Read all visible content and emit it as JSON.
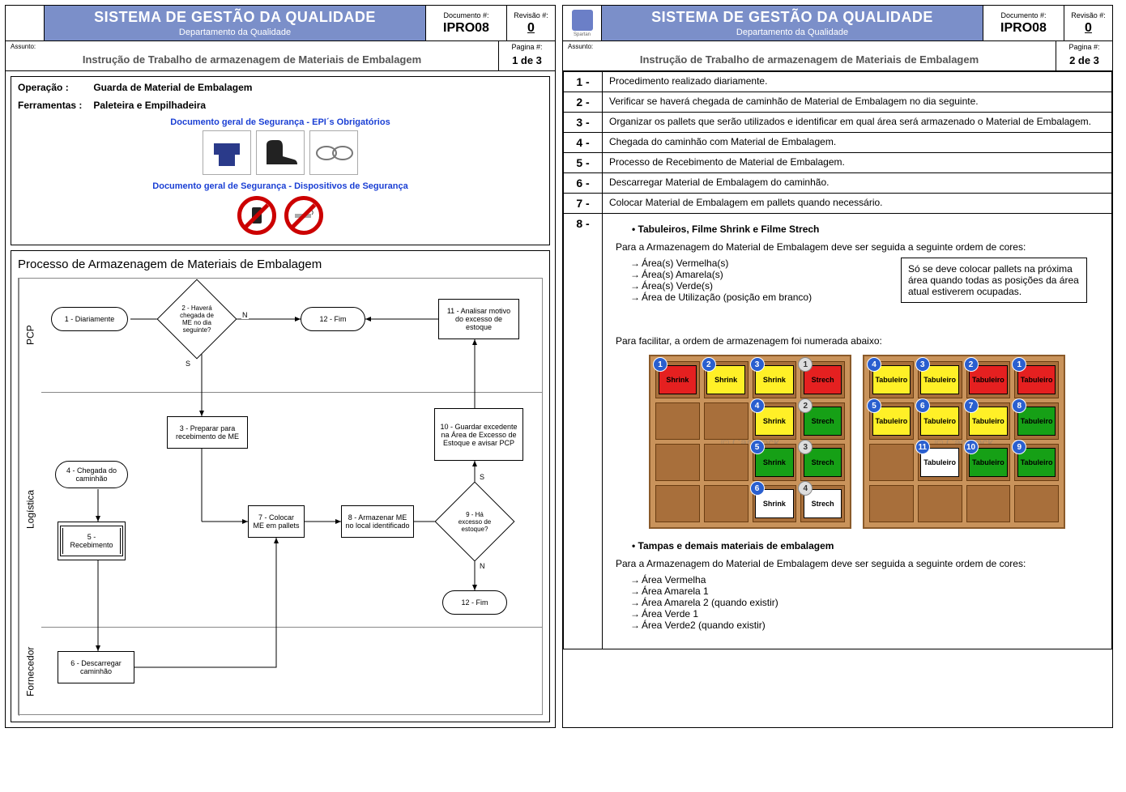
{
  "header": {
    "system_title": "SISTEMA DE GESTÃO DA QUALIDADE",
    "department": "Departamento da Qualidade",
    "doc_label": "Documento #:",
    "doc_value": "IPRO08",
    "rev_label": "Revisão #:",
    "rev_value": "0",
    "assunto_label": "Assunto:",
    "assunto_value": "Instrução de Trabalho de armazenagem de Materiais de Embalagem",
    "page_label": "Pagina #:",
    "page1": "1 de 3",
    "page2": "2 de 3",
    "logo_text": "Spartan"
  },
  "page1": {
    "op_label": "Operação :",
    "op_value": "Guarda de Material de Embalagem",
    "tool_label": "Ferramentas :",
    "tool_value": "Paleteira e Empilhadeira",
    "epi_title": "Documento geral de Segurança - EPI´s Obrigatórios",
    "disp_title": "Documento geral de Segurança - Dispositivos de Segurança",
    "flow_title": "Processo de Armazenagem de Materiais de Embalagem",
    "lanes": {
      "pcp": "PCP",
      "log": "Logística",
      "forn": "Fornecedor"
    },
    "nodes": {
      "n1": "1 - Diariamente",
      "n2": "2 - Haverá chegada de ME no dia seguinte?",
      "n3": "3 - Preparar para recebimento de ME",
      "n4": "4 - Chegada do caminhão",
      "n5": "5 - Recebimento",
      "n6": "6 - Descarregar caminhão",
      "n7": "7 - Colocar ME em pallets",
      "n8": "8 - Armazenar ME no local identificado",
      "n9": "9 - Há excesso de estoque?",
      "n10": "10 - Guardar excedente na Área de Excesso de Estoque e avisar PCP",
      "n11": "11 - Analisar motivo do excesso de estoque",
      "n12a": "12 - Fim",
      "n12b": "12 - Fim"
    },
    "edge_labels": {
      "s": "S",
      "n": "N"
    }
  },
  "page2": {
    "steps": [
      {
        "n": "1 -",
        "t": "Procedimento realizado diariamente."
      },
      {
        "n": "2 -",
        "t": "Verificar se haverá chegada de caminhão de Material de Embalagem no dia seguinte."
      },
      {
        "n": "3 -",
        "t": "Organizar os pallets que serão utilizados e identificar em qual área será armazenado o Material de Embalagem."
      },
      {
        "n": "4 -",
        "t": "Chegada do caminhão com Material de Embalagem."
      },
      {
        "n": "5 -",
        "t": "Processo de Recebimento de Material de Embalagem."
      },
      {
        "n": "6 -",
        "t": "Descarregar Material de Embalagem do caminhão."
      },
      {
        "n": "7 -",
        "t": "Colocar Material de Embalagem em pallets quando necessário."
      }
    ],
    "step8_n": "8 -",
    "step8": {
      "bullet1": "Tabuleiros, Filme Shrink e Filme Strech",
      "intro1": "Para a Armazenagem do Material de Embalagem deve ser seguida a seguinte ordem de cores:",
      "areas1": [
        "Área(s) Vermelha(s)",
        "Área(s) Amarela(s)",
        "Área(s) Verde(s)",
        "Área de Utilização (posição em branco)"
      ],
      "note": "Só se deve colocar pallets na próxima área quando todas as posições da área atual estiverem ocupadas.",
      "facil": "Para facilitar, a ordem de armazenagem foi numerada abaixo:",
      "bullet2": "Tampas e demais materiais de embalagem",
      "intro2": "Para a Armazenagem do Material de Embalagem deve ser seguida a seguinte ordem de cores:",
      "areas2": [
        "Área Vermelha",
        "Área Amarela 1",
        "Área Amarela 2 (quando existir)",
        "Área Verde 1",
        "Área Verde2 (quando existir)"
      ]
    },
    "colors": {
      "red": "#e52020",
      "yellow": "#fff027",
      "green": "#16a016",
      "white": "#ffffff",
      "wood": "#c9935b",
      "wood_dark": "#a86f3b",
      "badge_blue": "#2a5fcf"
    },
    "shelf1": [
      [
        {
          "c": "red",
          "l": "Shrink",
          "b": "1"
        },
        {
          "c": "yellow",
          "l": "Shrink",
          "b": "2"
        },
        {
          "c": "yellow",
          "l": "Shrink",
          "b": "3"
        },
        {
          "c": "red",
          "l": "Strech",
          "b": "1",
          "g": true
        }
      ],
      [
        null,
        null,
        {
          "c": "yellow",
          "l": "Shrink",
          "b": "4"
        },
        {
          "c": "green",
          "l": "Strech",
          "b": "2",
          "g": true
        }
      ],
      [
        null,
        null,
        {
          "c": "green",
          "l": "Shrink",
          "b": "5"
        },
        {
          "c": "green",
          "l": "Strech",
          "b": "3",
          "g": true
        }
      ],
      [
        null,
        null,
        {
          "c": "white",
          "l": "Shrink",
          "b": "6"
        },
        {
          "c": "white",
          "l": "Strech",
          "b": "4",
          "g": true
        }
      ]
    ],
    "shelf2": [
      [
        {
          "c": "yellow",
          "l": "Tabuleiro",
          "b": "4"
        },
        {
          "c": "yellow",
          "l": "Tabuleiro",
          "b": "3"
        },
        {
          "c": "red",
          "l": "Tabuleiro",
          "b": "2"
        },
        {
          "c": "red",
          "l": "Tabuleiro",
          "b": "1"
        }
      ],
      [
        {
          "c": "yellow",
          "l": "Tabuleiro",
          "b": "5"
        },
        {
          "c": "yellow",
          "l": "Tabuleiro",
          "b": "6"
        },
        {
          "c": "yellow",
          "l": "Tabuleiro",
          "b": "7"
        },
        {
          "c": "green",
          "l": "Tabuleiro",
          "b": "8"
        }
      ],
      [
        null,
        {
          "c": "white",
          "l": "Tabuleiro",
          "b": "11"
        },
        {
          "c": "green",
          "l": "Tabuleiro",
          "b": "10"
        },
        {
          "c": "green",
          "l": "Tabuleiro",
          "b": "9"
        }
      ],
      [
        null,
        null,
        null,
        null
      ]
    ],
    "watermark": "© Canstock"
  }
}
